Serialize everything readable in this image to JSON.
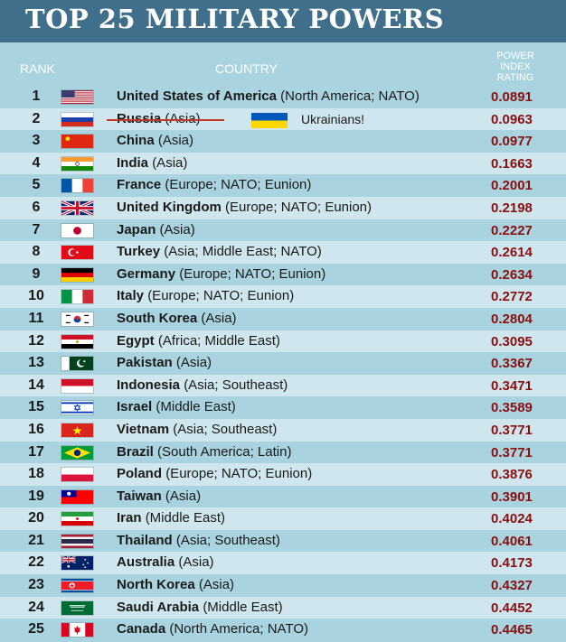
{
  "title": "TOP 25 MILITARY POWERS",
  "header": {
    "rank": "RANK",
    "country": "COUNTRY",
    "rating_line1": "POWER",
    "rating_line2": "INDEX",
    "rating_line3": "RATING"
  },
  "annotation": {
    "label": "Ukrainians!",
    "flag_icon": "ukraine-flag-icon"
  },
  "rows": [
    {
      "rank": "1",
      "name": "United States of America",
      "region": "(North America; NATO)",
      "rating": "0.0891",
      "flag": "us-flag-icon"
    },
    {
      "rank": "2",
      "name": "Russia",
      "region": "(Asia)",
      "rating": "0.0963",
      "flag": "russia-flag-icon",
      "struck": true
    },
    {
      "rank": "3",
      "name": "China",
      "region": "(Asia)",
      "rating": "0.0977",
      "flag": "china-flag-icon"
    },
    {
      "rank": "4",
      "name": "India",
      "region": "(Asia)",
      "rating": "0.1663",
      "flag": "india-flag-icon"
    },
    {
      "rank": "5",
      "name": "France",
      "region": "(Europe; NATO; Eunion)",
      "rating": "0.2001",
      "flag": "france-flag-icon"
    },
    {
      "rank": "6",
      "name": "United Kingdom",
      "region": "(Europe; NATO; Eunion)",
      "rating": "0.2198",
      "flag": "uk-flag-icon"
    },
    {
      "rank": "7",
      "name": "Japan",
      "region": "(Asia)",
      "rating": "0.2227",
      "flag": "japan-flag-icon"
    },
    {
      "rank": "8",
      "name": "Turkey",
      "region": "(Asia; Middle East; NATO)",
      "rating": "0.2614",
      "flag": "turkey-flag-icon"
    },
    {
      "rank": "9",
      "name": "Germany",
      "region": "(Europe; NATO; Eunion)",
      "rating": "0.2634",
      "flag": "germany-flag-icon"
    },
    {
      "rank": "10",
      "name": "Italy",
      "region": "(Europe; NATO; Eunion)",
      "rating": "0.2772",
      "flag": "italy-flag-icon"
    },
    {
      "rank": "11",
      "name": "South Korea",
      "region": "(Asia)",
      "rating": "0.2804",
      "flag": "south-korea-flag-icon"
    },
    {
      "rank": "12",
      "name": "Egypt",
      "region": "(Africa; Middle East)",
      "rating": "0.3095",
      "flag": "egypt-flag-icon"
    },
    {
      "rank": "13",
      "name": "Pakistan",
      "region": "(Asia)",
      "rating": "0.3367",
      "flag": "pakistan-flag-icon"
    },
    {
      "rank": "14",
      "name": "Indonesia",
      "region": "(Asia; Southeast)",
      "rating": "0.3471",
      "flag": "indonesia-flag-icon"
    },
    {
      "rank": "15",
      "name": "Israel",
      "region": "(Middle East)",
      "rating": "0.3589",
      "flag": "israel-flag-icon"
    },
    {
      "rank": "16",
      "name": "Vietnam",
      "region": "(Asia; Southeast)",
      "rating": "0.3771",
      "flag": "vietnam-flag-icon"
    },
    {
      "rank": "17",
      "name": "Brazil",
      "region": "(South America; Latin)",
      "rating": "0.3771",
      "flag": "brazil-flag-icon"
    },
    {
      "rank": "18",
      "name": "Poland",
      "region": "(Europe; NATO; Eunion)",
      "rating": "0.3876",
      "flag": "poland-flag-icon"
    },
    {
      "rank": "19",
      "name": "Taiwan",
      "region": "(Asia)",
      "rating": "0.3901",
      "flag": "taiwan-flag-icon"
    },
    {
      "rank": "20",
      "name": "Iran",
      "region": "(Middle East)",
      "rating": "0.4024",
      "flag": "iran-flag-icon"
    },
    {
      "rank": "21",
      "name": "Thailand",
      "region": "(Asia; Southeast)",
      "rating": "0.4061",
      "flag": "thailand-flag-icon"
    },
    {
      "rank": "22",
      "name": "Australia",
      "region": "(Asia)",
      "rating": "0.4173",
      "flag": "australia-flag-icon"
    },
    {
      "rank": "23",
      "name": "North Korea",
      "region": "(Asia)",
      "rating": "0.4327",
      "flag": "north-korea-flag-icon"
    },
    {
      "rank": "24",
      "name": "Saudi Arabia",
      "region": "(Middle East)",
      "rating": "0.4452",
      "flag": "saudi-arabia-flag-icon"
    },
    {
      "rank": "25",
      "name": "Canada",
      "region": "(North America; NATO)",
      "rating": "0.4465",
      "flag": "canada-flag-icon"
    }
  ]
}
